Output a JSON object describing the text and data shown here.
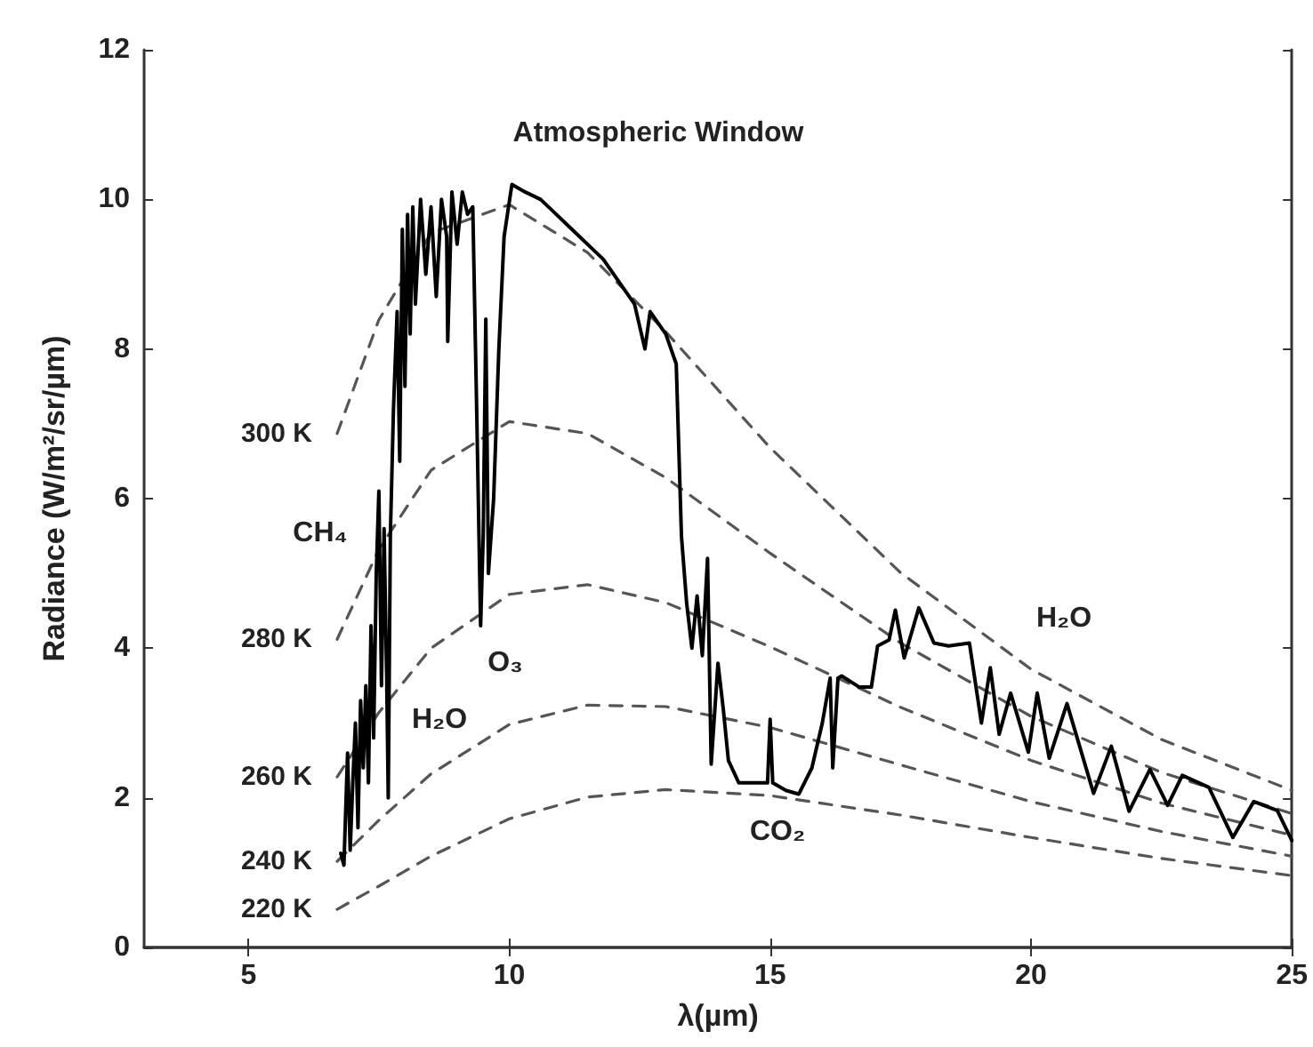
{
  "chart_data": {
    "type": "line",
    "xlabel": "λ(µm)",
    "ylabel": "Radiance (W/m²/sr/µm)",
    "xlim": [
      3,
      25
    ],
    "xticks": [
      5,
      10,
      15,
      20,
      25
    ],
    "ylim": [
      0,
      12
    ],
    "yticks": [
      0,
      2,
      4,
      6,
      8,
      10,
      12
    ],
    "grid": false,
    "legend": false,
    "marker": "none",
    "series": [
      {
        "color": "#000000",
        "line_style": "solid",
        "x": [
          6.77,
          6.83,
          6.9,
          6.95,
          7.0,
          7.05,
          7.1,
          7.15,
          7.2,
          7.25,
          7.3,
          7.35,
          7.4,
          7.45,
          7.5,
          7.55,
          7.6,
          7.65,
          7.68,
          7.72,
          7.78,
          7.85,
          7.9,
          7.95,
          8.0,
          8.05,
          8.1,
          8.15,
          8.2,
          8.3,
          8.4,
          8.5,
          8.6,
          8.7,
          8.8,
          8.82,
          8.9,
          9.0,
          9.1,
          9.2,
          9.3,
          9.38,
          9.45,
          9.5,
          9.55,
          9.6,
          9.7,
          9.8,
          9.9,
          10.05,
          10.3,
          10.6,
          10.9,
          11.2,
          11.5,
          11.8,
          12.1,
          12.4,
          12.6,
          12.7,
          13.0,
          13.2,
          13.3,
          13.4,
          13.5,
          13.6,
          13.7,
          13.8,
          13.87,
          14.0,
          14.1,
          14.2,
          14.4,
          14.8,
          14.95,
          15.0,
          15.05,
          15.3,
          15.55,
          15.8,
          16.0,
          16.15,
          16.2,
          16.3,
          16.37,
          16.71,
          16.94,
          17.06,
          17.28,
          17.4,
          17.57,
          17.85,
          18.14,
          18.42,
          18.82,
          19.05,
          19.22,
          19.39,
          19.61,
          19.95,
          20.12,
          20.35,
          20.69,
          21.2,
          21.54,
          21.88,
          22.28,
          22.62,
          22.9,
          23.41,
          23.87,
          24.27,
          24.72,
          25.0
        ],
        "values": [
          1.26,
          1.1,
          2.6,
          1.3,
          2.2,
          3.0,
          1.6,
          3.3,
          2.4,
          3.5,
          2.2,
          4.3,
          2.8,
          5.0,
          6.1,
          3.5,
          5.6,
          3.6,
          2.0,
          5.5,
          7.2,
          8.5,
          6.5,
          9.6,
          7.5,
          9.8,
          8.2,
          9.9,
          8.6,
          10.0,
          9.0,
          9.9,
          8.7,
          10.0,
          9.5,
          8.1,
          10.1,
          9.4,
          10.1,
          9.8,
          9.9,
          7.0,
          4.3,
          5.5,
          8.4,
          5.0,
          6.0,
          8.0,
          9.5,
          10.2,
          10.1,
          10.0,
          9.8,
          9.6,
          9.4,
          9.2,
          8.9,
          8.6,
          8.0,
          8.5,
          8.2,
          7.8,
          5.5,
          4.6,
          4.0,
          4.7,
          3.9,
          5.2,
          2.45,
          3.8,
          3.2,
          2.5,
          2.2,
          2.2,
          2.2,
          3.05,
          2.2,
          2.1,
          2.05,
          2.4,
          3.0,
          3.6,
          2.4,
          3.6,
          3.63,
          3.48,
          3.48,
          4.03,
          4.11,
          4.51,
          3.87,
          4.54,
          4.07,
          4.03,
          4.07,
          3.0,
          3.74,
          2.85,
          3.4,
          2.61,
          3.4,
          2.53,
          3.26,
          2.06,
          2.69,
          1.82,
          2.38,
          1.9,
          2.3,
          2.14,
          1.47,
          1.95,
          1.83,
          1.43
        ]
      },
      {
        "name": "300 K",
        "color": "#555555",
        "line_style": "dashed",
        "x": [
          6.7,
          7.5,
          8.5,
          10,
          11.5,
          13,
          15,
          17.5,
          20,
          22.5,
          25
        ],
        "values": [
          6.87,
          8.39,
          9.55,
          9.93,
          9.29,
          8.23,
          6.68,
          5.01,
          3.72,
          2.78,
          2.1
        ]
      },
      {
        "name": "280 K",
        "color": "#555555",
        "line_style": "dashed",
        "x": [
          6.7,
          7.5,
          8.5,
          10,
          11.5,
          13,
          15,
          17.5,
          20,
          22.5,
          25
        ],
        "values": [
          4.12,
          5.32,
          6.38,
          7.03,
          6.87,
          6.28,
          5.27,
          4.07,
          3.09,
          2.34,
          1.79
        ]
      },
      {
        "name": "260 K",
        "color": "#555555",
        "line_style": "dashed",
        "x": [
          6.7,
          7.5,
          8.5,
          10,
          11.5,
          13,
          15,
          17.5,
          20,
          22.5,
          25
        ],
        "values": [
          2.28,
          3.14,
          4.0,
          4.72,
          4.85,
          4.61,
          4.02,
          3.21,
          2.5,
          1.93,
          1.5
        ]
      },
      {
        "name": "240 K",
        "color": "#555555",
        "line_style": "dashed",
        "x": [
          6.7,
          7.5,
          8.5,
          10,
          11.5,
          13,
          15,
          17.5,
          20,
          22.5,
          25
        ],
        "values": [
          1.15,
          1.7,
          2.32,
          2.98,
          3.24,
          3.22,
          2.94,
          2.44,
          1.95,
          1.55,
          1.22
        ]
      },
      {
        "name": "220 K",
        "color": "#555555",
        "line_style": "dashed",
        "x": [
          6.7,
          7.5,
          8.5,
          10,
          11.5,
          13,
          15,
          17.5,
          20,
          22.5,
          25
        ],
        "values": [
          0.51,
          0.82,
          1.22,
          1.72,
          2.01,
          2.11,
          2.03,
          1.77,
          1.47,
          1.19,
          0.96
        ]
      }
    ],
    "annotations": [
      "Atmospheric Window",
      "CH₄",
      "H₂O",
      "O₃",
      "CO₂",
      "H₂O"
    ]
  }
}
